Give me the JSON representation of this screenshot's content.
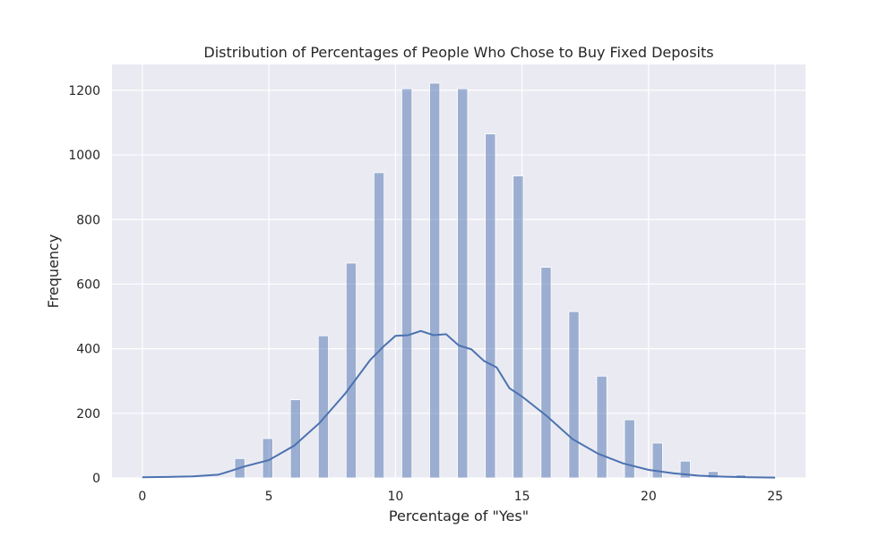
{
  "chart_data": {
    "type": "histogram",
    "title": "Distribution of Percentages of People Who Chose to Buy Fixed Deposits",
    "xlabel": "Percentage of \"Yes\"",
    "ylabel": "Frequency",
    "xlim": [
      -1.2,
      26.2
    ],
    "ylim": [
      0,
      1280
    ],
    "xticks": [
      0,
      5,
      10,
      15,
      20,
      25
    ],
    "yticks": [
      0,
      200,
      400,
      600,
      800,
      1000,
      1200
    ],
    "grid": true,
    "bar_color": "#4C72B0",
    "background_color": "#EAEAF2",
    "bars": [
      {
        "x": 0.0,
        "value": 3
      },
      {
        "x": 3.85,
        "value": 60
      },
      {
        "x": 4.95,
        "value": 122
      },
      {
        "x": 6.05,
        "value": 242
      },
      {
        "x": 7.15,
        "value": 440
      },
      {
        "x": 8.25,
        "value": 665
      },
      {
        "x": 9.35,
        "value": 945
      },
      {
        "x": 10.45,
        "value": 1205
      },
      {
        "x": 11.55,
        "value": 1222
      },
      {
        "x": 12.65,
        "value": 1205
      },
      {
        "x": 13.75,
        "value": 1065
      },
      {
        "x": 14.85,
        "value": 935
      },
      {
        "x": 15.95,
        "value": 652
      },
      {
        "x": 17.05,
        "value": 515
      },
      {
        "x": 18.15,
        "value": 315
      },
      {
        "x": 19.25,
        "value": 180
      },
      {
        "x": 20.35,
        "value": 108
      },
      {
        "x": 21.45,
        "value": 52
      },
      {
        "x": 22.55,
        "value": 20
      },
      {
        "x": 23.65,
        "value": 10
      }
    ],
    "kde": {
      "x": [
        0,
        1,
        2,
        3,
        3.5,
        4,
        5,
        6,
        7,
        8,
        9,
        9.5,
        10,
        10.5,
        11,
        11.5,
        12,
        12.5,
        13,
        13.5,
        14,
        14.5,
        15,
        16,
        17,
        18,
        19,
        20,
        21,
        22,
        23,
        24,
        25
      ],
      "y": [
        2,
        3,
        5,
        10,
        22,
        35,
        55,
        100,
        170,
        260,
        365,
        405,
        440,
        442,
        455,
        442,
        445,
        410,
        398,
        362,
        342,
        278,
        252,
        190,
        120,
        75,
        45,
        25,
        14,
        7,
        4,
        2,
        1
      ]
    }
  }
}
